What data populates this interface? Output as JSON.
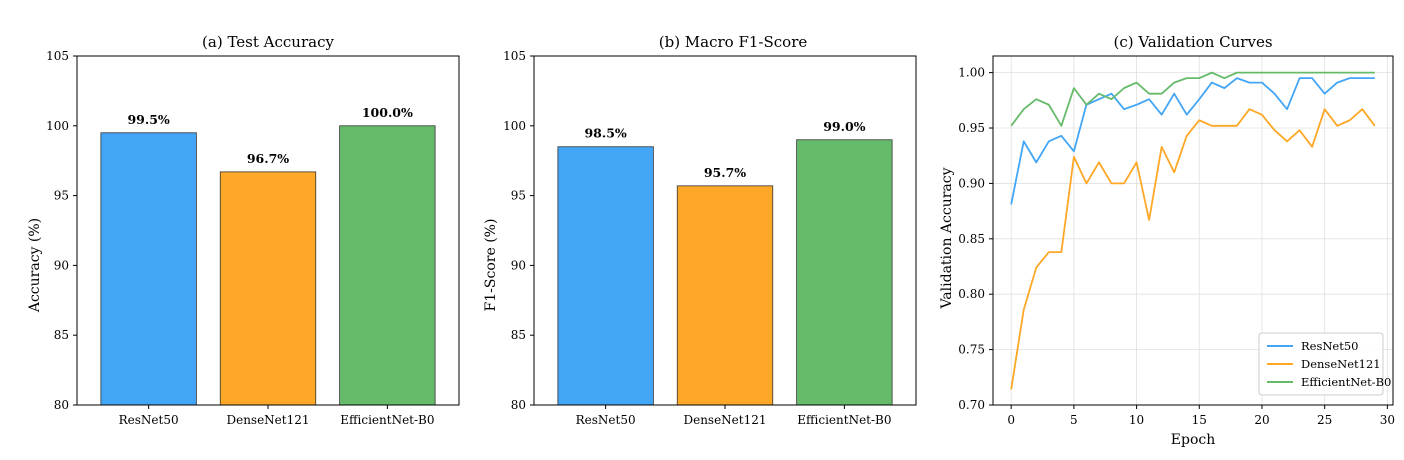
{
  "colors": {
    "ResNet50": "#42a5f5",
    "DenseNet121": "#ffa726",
    "EfficientNet-B0": "#66bb6a"
  },
  "chart_data": [
    {
      "type": "bar",
      "title": "(a) Test Accuracy",
      "xlabel": "",
      "ylabel": "Accuracy (%)",
      "categories": [
        "ResNet50",
        "DenseNet121",
        "EfficientNet-B0"
      ],
      "values": [
        99.5,
        96.7,
        100.0
      ],
      "value_labels": [
        "99.5%",
        "96.7%",
        "100.0%"
      ],
      "ylim": [
        80,
        105
      ],
      "yticks": [
        80,
        85,
        90,
        95,
        100,
        105
      ],
      "grid": false
    },
    {
      "type": "bar",
      "title": "(b) Macro F1-Score",
      "xlabel": "",
      "ylabel": "F1-Score (%)",
      "categories": [
        "ResNet50",
        "DenseNet121",
        "EfficientNet-B0"
      ],
      "values": [
        98.5,
        95.7,
        99.0
      ],
      "value_labels": [
        "98.5%",
        "95.7%",
        "99.0%"
      ],
      "ylim": [
        80,
        105
      ],
      "yticks": [
        80,
        85,
        90,
        95,
        100,
        105
      ],
      "grid": false
    },
    {
      "type": "line",
      "title": "(c) Validation Curves",
      "xlabel": "Epoch",
      "ylabel": "Validation Accuracy",
      "xlim": [
        -1.45,
        30.45
      ],
      "ylim": [
        0.7,
        1.015
      ],
      "xticks": [
        0,
        5,
        10,
        15,
        20,
        25,
        30
      ],
      "yticks": [
        0.7,
        0.75,
        0.8,
        0.85,
        0.9,
        0.95,
        1.0
      ],
      "ytick_labels": [
        "0.70",
        "0.75",
        "0.80",
        "0.85",
        "0.90",
        "0.95",
        "1.00"
      ],
      "grid": true,
      "legend_position": "lower-right",
      "x": [
        0,
        1,
        2,
        3,
        4,
        5,
        6,
        7,
        8,
        9,
        10,
        11,
        12,
        13,
        14,
        15,
        16,
        17,
        18,
        19,
        20,
        21,
        22,
        23,
        24,
        25,
        26,
        27,
        28,
        29
      ],
      "series": [
        {
          "name": "ResNet50",
          "values": [
            0.881,
            0.938,
            0.919,
            0.938,
            0.943,
            0.929,
            0.971,
            0.976,
            0.981,
            0.967,
            0.971,
            0.976,
            0.962,
            0.981,
            0.962,
            0.976,
            0.991,
            0.986,
            0.995,
            0.991,
            0.991,
            0.981,
            0.967,
            0.995,
            0.995,
            0.981,
            0.991,
            0.995,
            0.995,
            0.995
          ]
        },
        {
          "name": "DenseNet121",
          "values": [
            0.714,
            0.786,
            0.824,
            0.838,
            0.838,
            0.924,
            0.9,
            0.919,
            0.9,
            0.9,
            0.919,
            0.867,
            0.933,
            0.91,
            0.943,
            0.957,
            0.952,
            0.952,
            0.952,
            0.967,
            0.962,
            0.948,
            0.938,
            0.948,
            0.933,
            0.967,
            0.952,
            0.957,
            0.967,
            0.952
          ]
        },
        {
          "name": "EfficientNet-B0",
          "values": [
            0.952,
            0.967,
            0.976,
            0.971,
            0.952,
            0.986,
            0.971,
            0.981,
            0.976,
            0.986,
            0.991,
            0.981,
            0.981,
            0.991,
            0.995,
            0.995,
            1.0,
            0.995,
            1.0,
            1.0,
            1.0,
            1.0,
            1.0,
            1.0,
            1.0,
            1.0,
            1.0,
            1.0,
            1.0,
            1.0
          ]
        }
      ]
    }
  ]
}
